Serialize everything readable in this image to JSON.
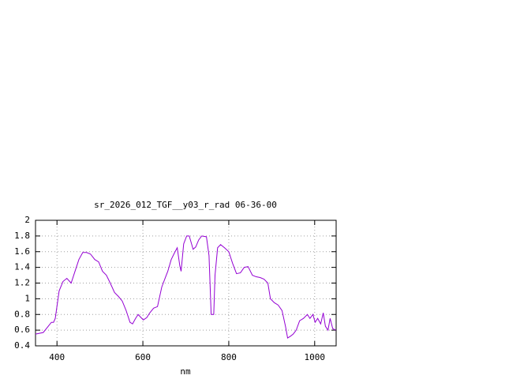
{
  "chart_data": {
    "type": "line",
    "title": "sr_2026_012_TGF__y03_r_rad 06-36-00",
    "x_label": "nm",
    "x": [
      350,
      368,
      387,
      392,
      396,
      405,
      414,
      423,
      433,
      442,
      451,
      460,
      469,
      478,
      488,
      497,
      506,
      515,
      524,
      534,
      543,
      552,
      561,
      570,
      576,
      583,
      589,
      594,
      601,
      609,
      616,
      625,
      634,
      644,
      653,
      658,
      666,
      675,
      680,
      686,
      689,
      695,
      702,
      708,
      717,
      723,
      730,
      737,
      748,
      754,
      759,
      765,
      768,
      774,
      781,
      790,
      800,
      809,
      818,
      827,
      836,
      845,
      855,
      864,
      873,
      882,
      891,
      897,
      906,
      915,
      924,
      932,
      937,
      943,
      950,
      957,
      965,
      974,
      983,
      989,
      996,
      1001,
      1007,
      1014,
      1020,
      1025,
      1031,
      1036,
      1042,
      1049
    ],
    "series": [
      {
        "name": "sr_2026_012_TGF__y03_r_rad",
        "color": "#9400d3",
        "values": [
          0.55,
          0.57,
          0.7,
          0.7,
          0.75,
          1.1,
          1.22,
          1.26,
          1.2,
          1.35,
          1.5,
          1.59,
          1.59,
          1.57,
          1.5,
          1.47,
          1.35,
          1.3,
          1.2,
          1.08,
          1.03,
          0.97,
          0.85,
          0.7,
          0.68,
          0.75,
          0.8,
          0.77,
          0.73,
          0.76,
          0.82,
          0.88,
          0.9,
          1.15,
          1.28,
          1.35,
          1.5,
          1.6,
          1.65,
          1.42,
          1.35,
          1.7,
          1.8,
          1.8,
          1.63,
          1.66,
          1.75,
          1.8,
          1.79,
          1.55,
          0.8,
          0.8,
          1.3,
          1.65,
          1.69,
          1.65,
          1.6,
          1.45,
          1.32,
          1.33,
          1.4,
          1.41,
          1.3,
          1.28,
          1.27,
          1.25,
          1.2,
          1.0,
          0.95,
          0.92,
          0.85,
          0.65,
          0.5,
          0.52,
          0.55,
          0.6,
          0.72,
          0.75,
          0.8,
          0.75,
          0.8,
          0.7,
          0.75,
          0.68,
          0.82,
          0.65,
          0.6,
          0.75,
          0.62,
          0.6
        ]
      }
    ],
    "xlim": [
      350,
      1050
    ],
    "xticks": [
      400,
      600,
      800,
      1000
    ],
    "ylim": [
      0.4,
      2
    ],
    "yticks": [
      0.4,
      0.6,
      0.8,
      1,
      1.2,
      1.4,
      1.6,
      1.8,
      2
    ],
    "grid": true
  }
}
